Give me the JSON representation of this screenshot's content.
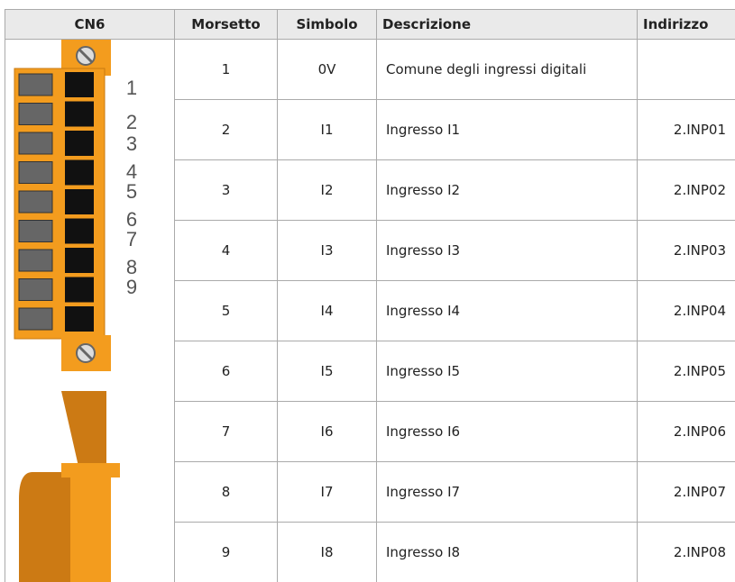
{
  "table": {
    "header": [
      "CN6",
      "Morsetto",
      "Simbolo",
      "Descrizione",
      "Indirizzo"
    ],
    "rows": [
      {
        "morsetto": "1",
        "simbolo": "0V",
        "descrizione": "Comune degli ingressi digitali"
      },
      {
        "morsetto": "2",
        "simbolo": "I1",
        "descrizione": "Ingresso I1",
        "indirizzo": "2.INP01"
      },
      {
        "morsetto": "3",
        "simbolo": "I2",
        "descrizione": "Ingresso I2",
        "indirizzo": "2.INP02"
      },
      {
        "morsetto": "4",
        "simbolo": "I3",
        "descrizione": "Ingresso I3",
        "indirizzo": "2.INP03"
      },
      {
        "morsetto": "5",
        "simbolo": "I4",
        "descrizione": "Ingresso I4",
        "indirizzo": "2.INP04"
      },
      {
        "morsetto": "6",
        "simbolo": "I5",
        "descrizione": "Ingresso I5",
        "indirizzo": "2.INP05"
      },
      {
        "morsetto": "7",
        "simbolo": "I6",
        "descrizione": "Ingresso I6",
        "indirizzo": "2.INP06"
      },
      {
        "morsetto": "8",
        "simbolo": "I7",
        "descrizione": "Ingresso I7",
        "indirizzo": "2.INP07"
      },
      {
        "morsetto": "9",
        "simbolo": "I8",
        "descrizione": "Ingresso I8",
        "indirizzo": "2.INP08"
      }
    ]
  },
  "connector": {
    "pin_labels": [
      "1",
      "2",
      "3",
      "4",
      "5",
      "6",
      "7",
      "8",
      "9"
    ]
  }
}
